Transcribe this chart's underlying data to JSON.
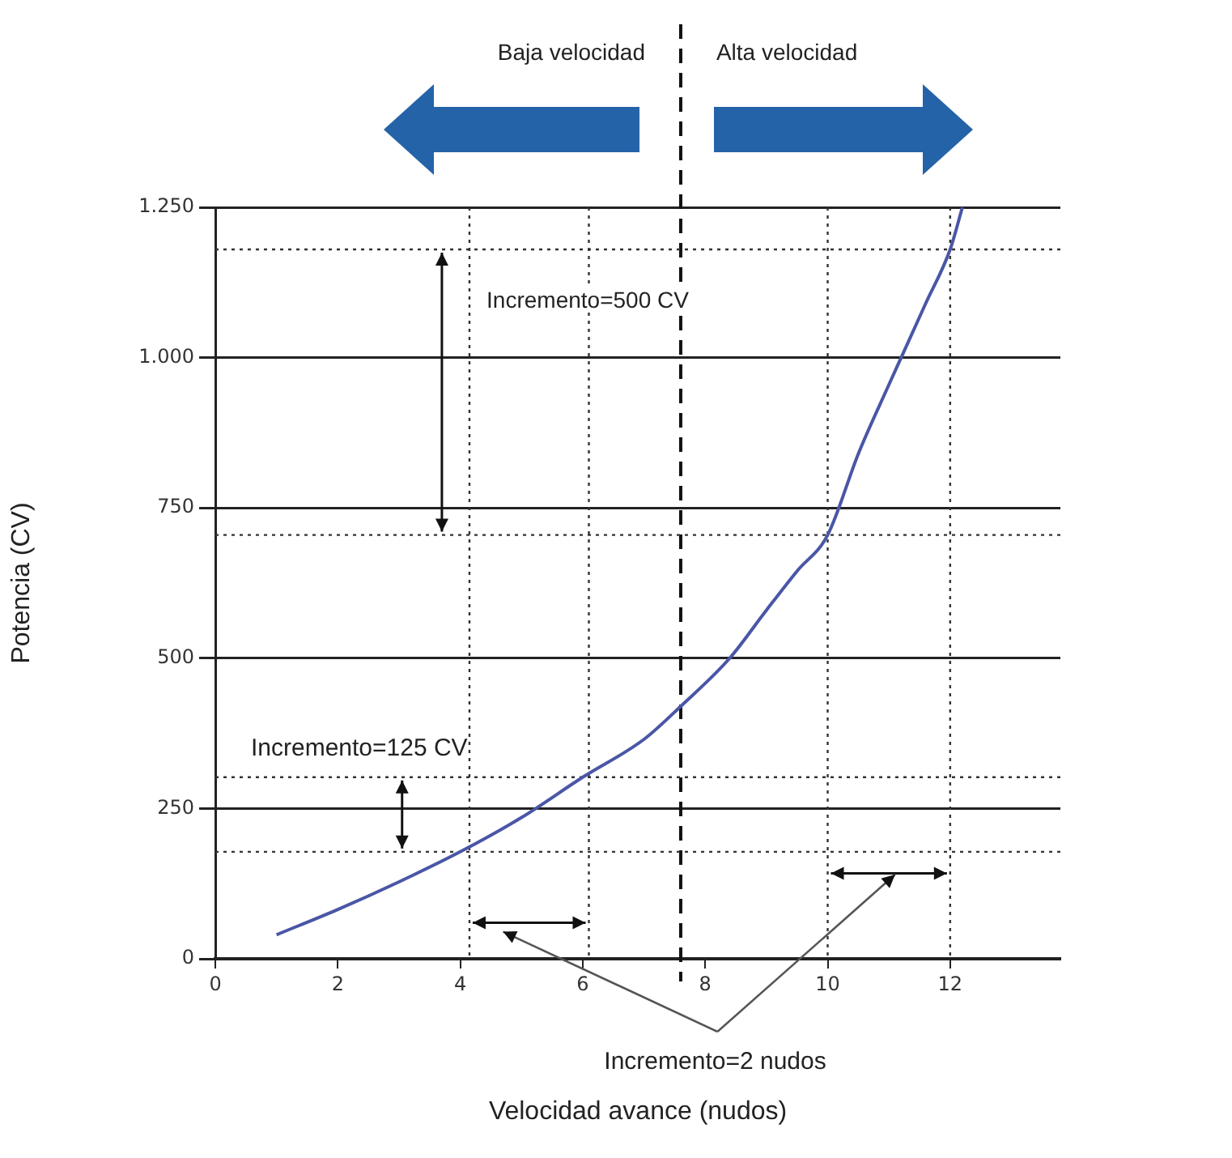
{
  "chart_data": {
    "type": "line",
    "xlabel": "Velocidad avance (nudos)",
    "ylabel": "Potencia (CV)",
    "x": [
      1,
      2,
      3,
      4,
      5,
      6,
      7,
      7.6,
      8.4,
      9,
      9.5,
      10,
      10.5,
      11,
      11.2,
      11.6,
      12,
      12.2
    ],
    "series": [
      {
        "color": "#4a56a6",
        "values": [
          40,
          82,
          128,
          178,
          235,
          302,
          365,
          420,
          500,
          580,
          645,
          705,
          840,
          955,
          1000,
          1090,
          1180,
          1250
        ]
      }
    ],
    "xlim": [
      0,
      13.8
    ],
    "xticks": [
      0,
      2,
      4,
      6,
      8,
      10,
      12
    ],
    "ylim": [
      0,
      1250
    ],
    "yticks": [
      0,
      250,
      500,
      750,
      {
        "value": 1000,
        "label": "1.000"
      },
      {
        "value": 1250,
        "label": "1.250"
      }
    ],
    "grid": "y",
    "legend": false,
    "marker": "none",
    "line_style": "solid",
    "ref_lines": [
      {
        "axis": "x",
        "value": 7.6,
        "color": "#111111",
        "line_style": "dashed"
      },
      {
        "axis": "y",
        "value": 1180,
        "color": "#333333",
        "line_style": "dotted"
      },
      {
        "axis": "y",
        "value": 705,
        "color": "#333333",
        "line_style": "dotted"
      },
      {
        "axis": "y",
        "value": 302,
        "color": "#333333",
        "line_style": "dotted"
      },
      {
        "axis": "y",
        "value": 178,
        "color": "#333333",
        "line_style": "dotted"
      },
      {
        "axis": "x",
        "value": 4.15,
        "color": "#333333",
        "line_style": "dotted"
      },
      {
        "axis": "x",
        "value": 6.1,
        "color": "#333333",
        "line_style": "dotted"
      },
      {
        "axis": "x",
        "value": 10,
        "color": "#333333",
        "line_style": "dotted"
      },
      {
        "axis": "x",
        "value": 12,
        "color": "#333333",
        "line_style": "dotted"
      }
    ],
    "annotations": [
      "Baja velocidad",
      "Alta velocidad",
      "Incremento=500 CV",
      {
        "text": "Incremento=125 CV",
        "x": 2.35,
        "y": 302
      },
      "Incremento=2 nudos"
    ]
  }
}
